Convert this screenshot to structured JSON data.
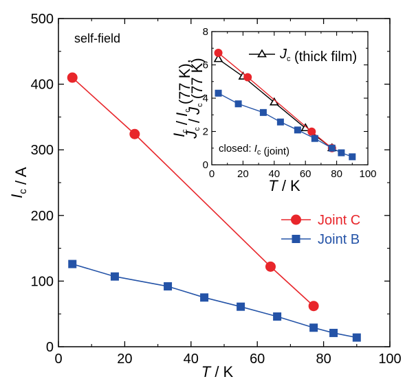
{
  "chart_data": [
    {
      "type": "line",
      "xlabel": "T / K",
      "ylabel": "I_c / A",
      "xlim": [
        0,
        100
      ],
      "ylim": [
        0,
        500
      ],
      "xticks": [
        "0",
        "20",
        "40",
        "60",
        "80",
        "100"
      ],
      "yticks": [
        "0",
        "100",
        "200",
        "300",
        "400",
        "500"
      ],
      "annotation": "self-field",
      "legend_position": "right-middle",
      "series": [
        {
          "name": "Joint C",
          "color": "#e8262b",
          "marker": "circle",
          "x": [
            4.2,
            23,
            64,
            77
          ],
          "y": [
            410,
            324,
            122,
            62
          ]
        },
        {
          "name": "Joint B",
          "color": "#2453a7",
          "marker": "square",
          "x": [
            4.2,
            17,
            33,
            44,
            55,
            66,
            77,
            83,
            90
          ],
          "y": [
            126,
            107,
            92,
            75,
            61,
            46,
            29,
            21,
            14
          ]
        }
      ]
    },
    {
      "type": "line",
      "xlabel": "T / K",
      "ylabel_line1": "I_c / I_c (77 K),",
      "ylabel_line2": "J_c / J_c (77 K)",
      "xlim": [
        0,
        100
      ],
      "ylim": [
        0,
        8
      ],
      "xticks": [
        "0",
        "20",
        "40",
        "60",
        "80",
        "100"
      ],
      "yticks": [
        "0",
        "2",
        "4",
        "6",
        "8"
      ],
      "annotation": "closed: I_c (joint)",
      "legend_position": "top-right",
      "series": [
        {
          "name": "J_c (thick film)",
          "color": "#000000",
          "marker": "open-triangle",
          "x": [
            4.2,
            20,
            40,
            60,
            77
          ],
          "y": [
            6.35,
            5.3,
            3.75,
            2.2,
            1.0
          ]
        },
        {
          "name": "Joint C",
          "color": "#e8262b",
          "marker": "circle",
          "x": [
            4.2,
            23,
            64,
            77
          ],
          "y": [
            6.72,
            5.26,
            1.99,
            1.0
          ]
        },
        {
          "name": "Joint B",
          "color": "#2453a7",
          "marker": "square",
          "x": [
            4.2,
            17,
            33,
            44,
            55,
            66,
            77,
            83,
            90
          ],
          "y": [
            4.3,
            3.66,
            3.14,
            2.57,
            2.09,
            1.58,
            1.0,
            0.72,
            0.48
          ]
        }
      ]
    }
  ]
}
